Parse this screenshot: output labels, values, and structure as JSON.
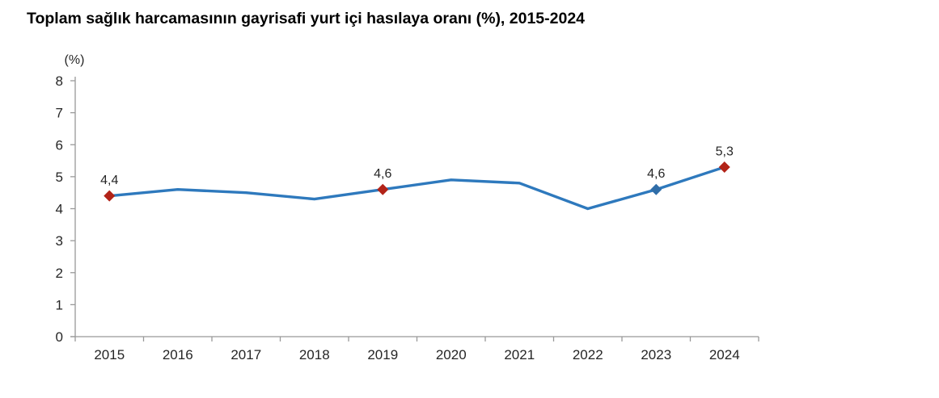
{
  "title": "Toplam sağlık harcamasının gayrisafi yurt içi hasılaya oranı (%), 2015-2024",
  "colors": {
    "line": "#2e79bd",
    "marker_red": "#b22318",
    "marker_blue": "#2f6da8",
    "axis": "#999999",
    "tick_text": "#262626",
    "label_text": "#262626",
    "title_text": "#000000",
    "background": "#ffffff"
  },
  "chart_data": {
    "type": "line",
    "title": "Toplam sağlık harcamasının gayrisafi yurt içi hasılaya oranı (%), 2015-2024",
    "ylabel": "(%)",
    "xlabel": "",
    "categories": [
      "2015",
      "2016",
      "2017",
      "2018",
      "2019",
      "2020",
      "2021",
      "2022",
      "2023",
      "2024"
    ],
    "values": [
      4.4,
      4.6,
      4.5,
      4.3,
      4.6,
      4.9,
      4.8,
      4.0,
      4.6,
      5.3
    ],
    "ylim": [
      0,
      8
    ],
    "ytick_step": 1,
    "grid": false,
    "legend": false,
    "data_labels": [
      {
        "category": "2015",
        "label": "4,4",
        "marker": "red"
      },
      {
        "category": "2019",
        "label": "4,6",
        "marker": "red"
      },
      {
        "category": "2023",
        "label": "4,6",
        "marker": "blue"
      },
      {
        "category": "2024",
        "label": "5,3",
        "marker": "red"
      }
    ]
  }
}
